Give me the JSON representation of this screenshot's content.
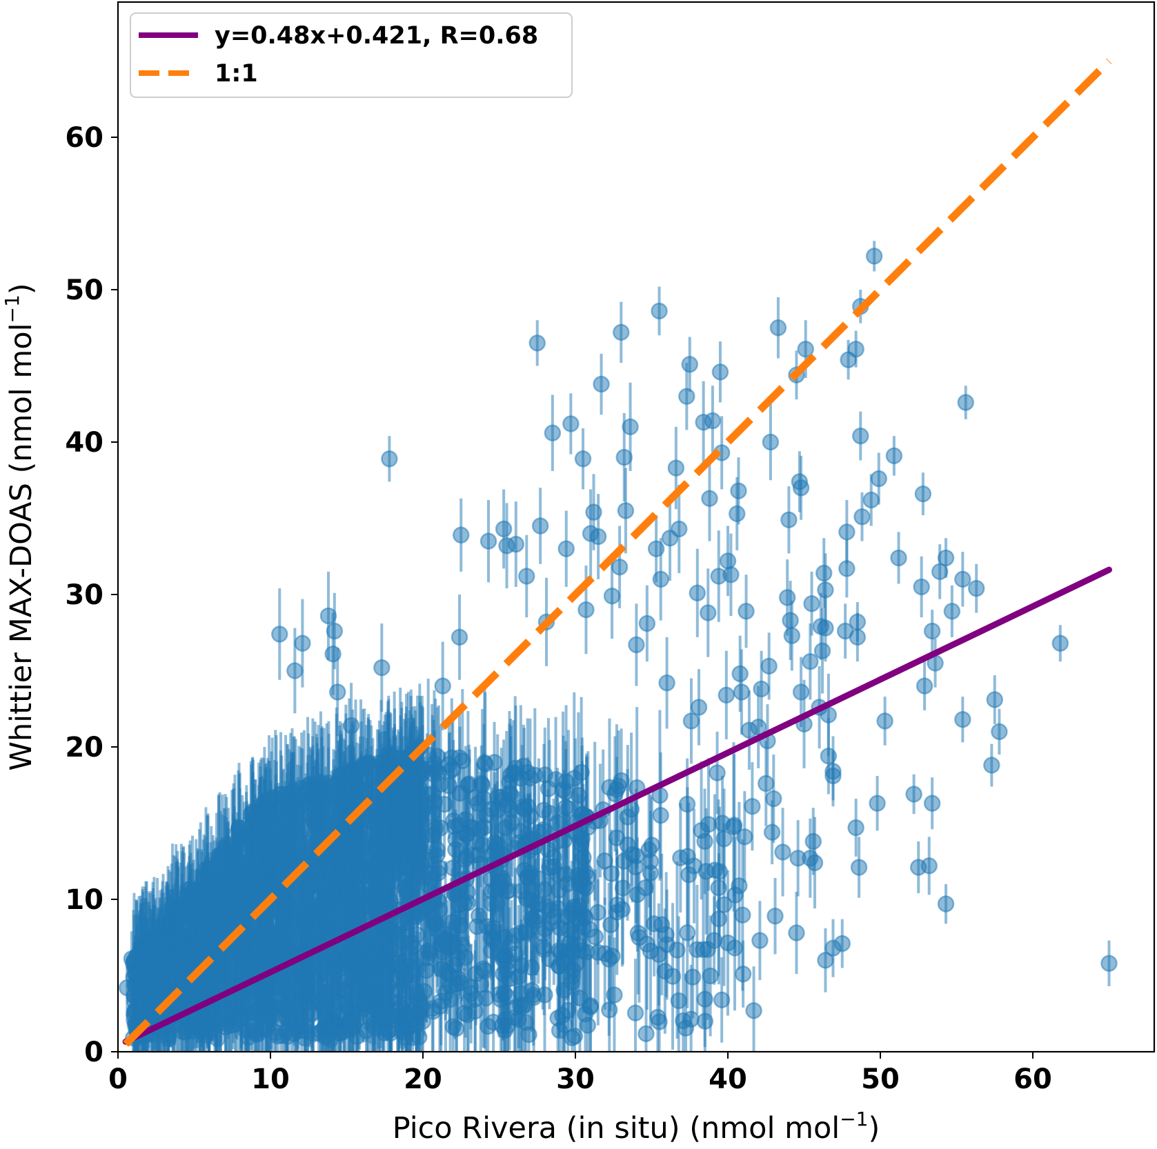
{
  "chart_data": {
    "type": "scatter",
    "xlabel": "Pico Rivera (in situ) (nmol mol",
    "xlabel_sup": "−1",
    "xlabel_close": ")",
    "ylabel": "Whittier MAX-DOAS (nmol mol",
    "ylabel_sup": "−1",
    "ylabel_close": ")",
    "xlim": [
      0,
      68
    ],
    "ylim": [
      0,
      68
    ],
    "xticks": [
      "0",
      "10",
      "20",
      "30",
      "40",
      "50",
      "60"
    ],
    "yticks": [
      "0",
      "10",
      "20",
      "30",
      "40",
      "50",
      "60"
    ],
    "legend_position": "top-left",
    "legend": [
      {
        "label": "y=0.48x+0.421, R=0.68",
        "color": "#800080",
        "style": "solid"
      },
      {
        "label": "1:1",
        "color": "#ff7f0e",
        "style": "dashed"
      }
    ],
    "fit_line": {
      "slope": 0.48,
      "intercept": 0.421,
      "x": [
        0.5,
        65
      ],
      "color": "#800080"
    },
    "one_to_one_line": {
      "x": [
        0.5,
        65
      ],
      "color": "#ff7f0e"
    },
    "marker_color": "#1f77b4",
    "error_bar_color": "#1f77b4",
    "outlier_points": [
      [
        65.0,
        5.8,
        1.5
      ],
      [
        61.8,
        26.8,
        1.2
      ],
      [
        57.8,
        21.0,
        1.5
      ],
      [
        57.5,
        23.1,
        1.6
      ],
      [
        57.3,
        18.8,
        1.4
      ],
      [
        56.3,
        30.4,
        1.6
      ],
      [
        55.6,
        42.6,
        1.1
      ],
      [
        55.4,
        31.0,
        1.8
      ],
      [
        55.4,
        21.8,
        1.5
      ],
      [
        54.7,
        28.9,
        1.7
      ],
      [
        54.3,
        9.7,
        1.3
      ],
      [
        54.3,
        32.4,
        1.3
      ],
      [
        53.9,
        31.5,
        1.8
      ],
      [
        53.6,
        25.5,
        1.6
      ],
      [
        53.4,
        27.6,
        1.4
      ],
      [
        53.4,
        16.3,
        1.7
      ],
      [
        53.2,
        12.2,
        1.9
      ],
      [
        52.9,
        24.0,
        1.6
      ],
      [
        52.8,
        36.6,
        1.4
      ],
      [
        52.7,
        30.5,
        2.0
      ],
      [
        52.5,
        12.1,
        1.7
      ],
      [
        52.2,
        16.9,
        1.3
      ],
      [
        51.2,
        32.4,
        1.7
      ],
      [
        50.9,
        39.1,
        1.3
      ],
      [
        50.3,
        21.7,
        1.6
      ],
      [
        49.9,
        37.6,
        1.7
      ],
      [
        49.8,
        16.3,
        1.8
      ],
      [
        49.6,
        52.2,
        1.0
      ],
      [
        49.4,
        36.2,
        1.7
      ],
      [
        48.8,
        35.1,
        1.6
      ],
      [
        48.7,
        48.9,
        1.1
      ],
      [
        48.7,
        40.4,
        1.6
      ],
      [
        48.6,
        12.1,
        2.0
      ],
      [
        48.5,
        28.2,
        1.3
      ],
      [
        48.5,
        27.2,
        1.6
      ],
      [
        48.4,
        14.7,
        1.9
      ],
      [
        48.4,
        46.1,
        1.2
      ],
      [
        47.9,
        45.4,
        1.3
      ],
      [
        47.8,
        34.1,
        2.1
      ],
      [
        47.8,
        31.7,
        1.9
      ],
      [
        47.7,
        27.6,
        1.8
      ],
      [
        47.5,
        7.1,
        1.6
      ],
      [
        46.9,
        18.1,
        1.6
      ],
      [
        46.9,
        6.8,
        1.9
      ],
      [
        46.9,
        18.4,
        2.3
      ],
      [
        46.6,
        19.4,
        2.5
      ],
      [
        46.6,
        22.1,
        2.7
      ],
      [
        46.4,
        6.0,
        2.1
      ],
      [
        46.4,
        27.8,
        2.2
      ],
      [
        46.4,
        30.3,
        2.4
      ],
      [
        46.3,
        31.4,
        2.3
      ],
      [
        46.2,
        26.3,
        2.8
      ],
      [
        46.1,
        27.9,
        2.2
      ],
      [
        46.0,
        22.6,
        2.7
      ],
      [
        45.7,
        12.4,
        3.0
      ],
      [
        45.6,
        13.8,
        2.2
      ],
      [
        45.5,
        29.4,
        2.1
      ],
      [
        45.4,
        12.7,
        2.6
      ],
      [
        45.4,
        25.6,
        2.5
      ],
      [
        45.1,
        46.1,
        1.9
      ],
      [
        45.0,
        21.5,
        2.9
      ],
      [
        44.8,
        37.0,
        2.1
      ],
      [
        44.8,
        23.6,
        2.3
      ],
      [
        44.7,
        37.4,
        2.0
      ],
      [
        44.6,
        12.7,
        2.5
      ],
      [
        44.5,
        44.4,
        1.6
      ],
      [
        44.5,
        7.8,
        2.7
      ],
      [
        44.2,
        27.3,
        2.3
      ],
      [
        44.1,
        28.3,
        2.6
      ],
      [
        44.0,
        34.9,
        2.2
      ],
      [
        43.9,
        29.8,
        2.5
      ],
      [
        43.6,
        13.1,
        2.9
      ],
      [
        43.3,
        47.5,
        2.0
      ],
      [
        43.1,
        8.9,
        2.5
      ],
      [
        43.0,
        16.6,
        2.9
      ],
      [
        42.9,
        14.4,
        2.1
      ],
      [
        42.8,
        40.0,
        2.5
      ],
      [
        42.7,
        25.3,
        2.2
      ],
      [
        42.6,
        20.4,
        2.4
      ],
      [
        42.5,
        17.6,
        2.8
      ],
      [
        42.2,
        23.8,
        2.5
      ],
      [
        42.1,
        7.3,
        2.6
      ],
      [
        42.0,
        21.3,
        2.7
      ],
      [
        41.7,
        2.7,
        2.9
      ],
      [
        41.6,
        16.1,
        2.9
      ],
      [
        41.4,
        21.1,
        2.6
      ],
      [
        41.2,
        28.9,
        2.4
      ],
      [
        41.1,
        14.1,
        3.0
      ],
      [
        41.0,
        5.1,
        2.2
      ],
      [
        40.9,
        23.6,
        2.8
      ],
      [
        40.8,
        24.8,
        2.5
      ],
      [
        40.7,
        36.8,
        2.2
      ],
      [
        40.6,
        35.3,
        2.4
      ],
      [
        40.2,
        31.3,
        2.7
      ],
      [
        40.0,
        32.2,
        2.3
      ],
      [
        39.9,
        23.4,
        2.9
      ],
      [
        39.6,
        3.4,
        2.8
      ],
      [
        39.6,
        39.3,
        2.4
      ],
      [
        39.5,
        44.6,
        2.0
      ],
      [
        39.4,
        31.2,
        3.0
      ],
      [
        39.3,
        18.3,
        2.7
      ],
      [
        39.1,
        7.3,
        2.9
      ],
      [
        39.0,
        41.4,
        2.3
      ],
      [
        38.8,
        36.3,
        2.8
      ],
      [
        38.7,
        28.8,
        2.9
      ],
      [
        38.5,
        2.0,
        2.6
      ],
      [
        38.4,
        41.3,
        2.7
      ],
      [
        38.1,
        22.6,
        2.5
      ],
      [
        38.0,
        30.1,
        2.9
      ],
      [
        37.7,
        4.9,
        2.7
      ],
      [
        37.6,
        21.7,
        2.8
      ],
      [
        37.5,
        45.1,
        1.8
      ],
      [
        37.3,
        43.0,
        2.2
      ],
      [
        36.8,
        34.3,
        2.9
      ],
      [
        36.6,
        38.3,
        2.7
      ],
      [
        36.2,
        33.7,
        2.8
      ],
      [
        36.0,
        24.2,
        3.0
      ],
      [
        35.6,
        31.0,
        2.7
      ],
      [
        35.5,
        48.6,
        1.6
      ],
      [
        35.3,
        33.0,
        2.2
      ],
      [
        34.7,
        28.1,
        2.5
      ],
      [
        34.0,
        26.7,
        2.7
      ],
      [
        33.6,
        41.0,
        2.9
      ],
      [
        33.3,
        35.5,
        2.8
      ],
      [
        33.2,
        39.0,
        2.9
      ],
      [
        33.0,
        47.2,
        2.0
      ],
      [
        32.9,
        31.8,
        2.7
      ],
      [
        32.4,
        29.9,
        2.8
      ],
      [
        31.7,
        43.8,
        2.0
      ],
      [
        31.5,
        33.8,
        2.8
      ],
      [
        31.2,
        35.4,
        2.5
      ],
      [
        31.0,
        34.0,
        2.9
      ],
      [
        30.7,
        29.0,
        2.9
      ],
      [
        30.5,
        38.9,
        2.0
      ],
      [
        29.7,
        41.2,
        2.0
      ],
      [
        29.4,
        33.0,
        2.5
      ],
      [
        28.5,
        40.6,
        2.5
      ],
      [
        28.1,
        28.2,
        2.9
      ],
      [
        27.5,
        46.5,
        1.5
      ],
      [
        27.7,
        34.5,
        2.5
      ],
      [
        26.8,
        31.2,
        2.7
      ],
      [
        26.1,
        33.3,
        2.8
      ],
      [
        25.3,
        34.3,
        2.6
      ],
      [
        25.5,
        33.2,
        2.8
      ],
      [
        24.3,
        33.5,
        2.7
      ],
      [
        22.5,
        33.9,
        2.4
      ],
      [
        22.4,
        27.2,
        2.8
      ],
      [
        21.3,
        24.0,
        2.9
      ],
      [
        17.8,
        38.9,
        1.5
      ],
      [
        17.3,
        25.2,
        2.9
      ],
      [
        15.3,
        21.4,
        2.8
      ],
      [
        14.4,
        23.6,
        2.9
      ],
      [
        14.2,
        27.6,
        2.5
      ],
      [
        14.1,
        26.1,
        2.7
      ],
      [
        13.8,
        28.6,
        2.9
      ],
      [
        12.1,
        26.8,
        2.9
      ],
      [
        11.6,
        25.0,
        2.8
      ],
      [
        10.6,
        27.4,
        3.0
      ],
      [
        2.1,
        8.2,
        2.2
      ],
      [
        0.9,
        6.1,
        1.8
      ],
      [
        0.6,
        4.2,
        1.9
      ],
      [
        1.0,
        0.9,
        1.0
      ],
      [
        1.5,
        2.1,
        1.5
      ],
      [
        2.6,
        3.9,
        2.2
      ],
      [
        3.3,
        5.4,
        2.8
      ],
      [
        1.2,
        1.8,
        1.4
      ],
      [
        2.0,
        1.2,
        1.2
      ]
    ],
    "cluster_random_seed": 12345,
    "cluster_point_count": 2300
  }
}
